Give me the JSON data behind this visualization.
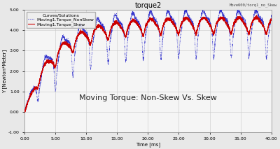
{
  "title": "torque2",
  "top_right_label": "Move600/torq1_no_Skew",
  "legend_title": "Curves/Solutions",
  "legend_entries": [
    "Moving1.Torque_NonSkew",
    "Moving1.Torque_Skew"
  ],
  "xlabel": "Time [ms]",
  "ylabel": "Y [Newton*Meter]",
  "xlim": [
    0.0,
    40.0
  ],
  "ylim": [
    -1.0,
    5.0
  ],
  "xticks": [
    0.0,
    5.0,
    10.0,
    15.0,
    20.0,
    25.0,
    30.0,
    35.0,
    40.0
  ],
  "yticks": [
    -1.0,
    0.0,
    1.0,
    2.0,
    3.0,
    4.0,
    5.0
  ],
  "annotation": "Moving Torque: Non-Skew Vs. Skew",
  "bg_color": "#e8e8e8",
  "plot_bg_color": "#f5f5f5",
  "grid_color": "#c8c8c8",
  "line_nonSkew_color": "#3333cc",
  "line_skew_color": "#cc0000",
  "title_fontsize": 7,
  "label_fontsize": 5,
  "tick_fontsize": 4.5,
  "legend_fontsize": 4.5,
  "annotation_fontsize": 8,
  "top_right_fontsize": 4
}
